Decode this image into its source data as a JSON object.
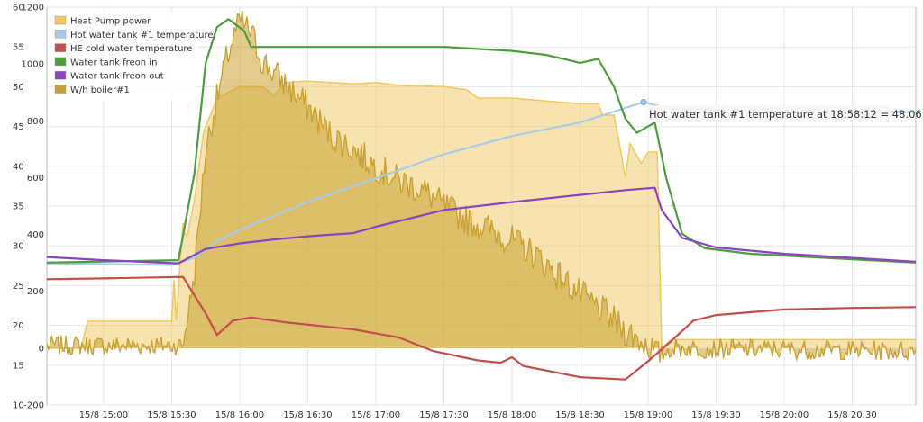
{
  "chart_data": {
    "type": "line",
    "title": "",
    "xlabel": "",
    "ylabel": "",
    "grid": true,
    "legend_position": "top-left",
    "x_axis": {
      "ticks": [
        "15/8 15:00",
        "15/8 15:30",
        "15/8 16:00",
        "15/8 16:30",
        "15/8 17:00",
        "15/8 17:30",
        "15/8 18:00",
        "15/8 18:30",
        "15/8 19:00",
        "15/8 19:30",
        "15/8 20:00",
        "15/8 20:30"
      ],
      "range": [
        "14:35",
        "20:58"
      ]
    },
    "y_axes": {
      "left": {
        "ticks": [
          "60",
          "55",
          "50",
          "45",
          "40",
          "35",
          "30",
          "25",
          "20",
          "15",
          "10"
        ],
        "ylim": [
          10,
          60
        ]
      },
      "right": {
        "ticks": [
          "1200",
          "1000",
          "800",
          "600",
          "400",
          "200",
          "0",
          "-200"
        ],
        "ylim": [
          -200,
          1200
        ]
      }
    },
    "series": [
      {
        "name": "Heat Pump power",
        "axis": "right",
        "style": "area",
        "color": "#f0c860",
        "points": [
          [
            "14:35",
            0
          ],
          [
            "14:50",
            0
          ],
          [
            "14:53",
            95
          ],
          [
            "15:30",
            95
          ],
          [
            "15:31",
            240
          ],
          [
            "15:32",
            100
          ],
          [
            "15:35",
            440
          ],
          [
            "15:36",
            400
          ],
          [
            "15:37",
            400
          ],
          [
            "15:40",
            520
          ],
          [
            "15:44",
            760
          ],
          [
            "15:50",
            880
          ],
          [
            "16:00",
            920
          ],
          [
            "16:10",
            920
          ],
          [
            "16:15",
            890
          ],
          [
            "16:20",
            935
          ],
          [
            "16:30",
            940
          ],
          [
            "16:50",
            930
          ],
          [
            "17:00",
            935
          ],
          [
            "17:10",
            925
          ],
          [
            "17:30",
            920
          ],
          [
            "17:40",
            910
          ],
          [
            "17:45",
            880
          ],
          [
            "18:00",
            880
          ],
          [
            "18:15",
            870
          ],
          [
            "18:30",
            860
          ],
          [
            "18:38",
            860
          ],
          [
            "18:40",
            820
          ],
          [
            "18:45",
            820
          ],
          [
            "18:48",
            690
          ],
          [
            "18:50",
            600
          ],
          [
            "18:52",
            720
          ],
          [
            "18:57",
            650
          ],
          [
            "19:00",
            690
          ],
          [
            "19:04",
            690
          ],
          [
            "19:06",
            0
          ],
          [
            "19:10",
            30
          ],
          [
            "19:30",
            30
          ],
          [
            "20:58",
            30
          ]
        ]
      },
      {
        "name": "Hot water tank #1 temperature",
        "axis": "left",
        "color": "#a8cce8",
        "points": [
          [
            "14:35",
            27.8
          ],
          [
            "15:30",
            27.6
          ],
          [
            "15:40",
            28.5
          ],
          [
            "15:50",
            30.6
          ],
          [
            "16:00",
            32.0
          ],
          [
            "16:30",
            35.5
          ],
          [
            "17:00",
            38.5
          ],
          [
            "17:30",
            41.5
          ],
          [
            "18:00",
            43.8
          ],
          [
            "18:30",
            45.5
          ],
          [
            "18:58",
            48.06
          ],
          [
            "19:10",
            47.2
          ],
          [
            "20:00",
            47.0
          ],
          [
            "20:58",
            46.8
          ]
        ]
      },
      {
        "name": "HE cold water temperature",
        "axis": "left",
        "color": "#c0504d",
        "points": [
          [
            "14:35",
            25.8
          ],
          [
            "15:00",
            25.9
          ],
          [
            "15:35",
            26.1
          ],
          [
            "15:45",
            21.5
          ],
          [
            "15:50",
            18.8
          ],
          [
            "15:57",
            20.6
          ],
          [
            "16:05",
            21.0
          ],
          [
            "16:20",
            20.4
          ],
          [
            "16:50",
            19.5
          ],
          [
            "17:10",
            18.5
          ],
          [
            "17:25",
            16.8
          ],
          [
            "17:45",
            15.6
          ],
          [
            "17:55",
            15.3
          ],
          [
            "18:00",
            16.0
          ],
          [
            "18:05",
            14.9
          ],
          [
            "18:30",
            13.5
          ],
          [
            "18:50",
            13.2
          ],
          [
            "19:00",
            15.5
          ],
          [
            "19:10",
            18.0
          ],
          [
            "19:20",
            20.6
          ],
          [
            "19:30",
            21.3
          ],
          [
            "20:00",
            22.0
          ],
          [
            "20:30",
            22.2
          ],
          [
            "20:58",
            22.3
          ]
        ]
      },
      {
        "name": "Water tank freon in",
        "axis": "left",
        "color": "#4c9e3c",
        "points": [
          [
            "14:35",
            27.9
          ],
          [
            "15:33",
            28.2
          ],
          [
            "15:40",
            39.0
          ],
          [
            "15:45",
            53.0
          ],
          [
            "15:50",
            57.5
          ],
          [
            "15:55",
            58.5
          ],
          [
            "16:02",
            57.0
          ],
          [
            "16:05",
            55.0
          ],
          [
            "16:20",
            55.0
          ],
          [
            "17:00",
            55.0
          ],
          [
            "17:30",
            55.0
          ],
          [
            "18:00",
            54.5
          ],
          [
            "18:15",
            54.0
          ],
          [
            "18:30",
            53.0
          ],
          [
            "18:38",
            53.5
          ],
          [
            "18:45",
            50.0
          ],
          [
            "18:50",
            46.0
          ],
          [
            "18:55",
            44.2
          ],
          [
            "19:03",
            45.5
          ],
          [
            "19:08",
            38.5
          ],
          [
            "19:15",
            31.5
          ],
          [
            "19:25",
            29.7
          ],
          [
            "19:45",
            29.0
          ],
          [
            "20:30",
            28.3
          ],
          [
            "20:58",
            27.9
          ]
        ]
      },
      {
        "name": "Water tank freon out",
        "axis": "left",
        "color": "#8a44c2",
        "points": [
          [
            "14:35",
            28.6
          ],
          [
            "15:00",
            28.2
          ],
          [
            "15:33",
            27.8
          ],
          [
            "15:45",
            29.6
          ],
          [
            "16:00",
            30.3
          ],
          [
            "16:15",
            30.8
          ],
          [
            "16:30",
            31.2
          ],
          [
            "16:50",
            31.6
          ],
          [
            "17:00",
            32.4
          ],
          [
            "17:30",
            34.5
          ],
          [
            "18:00",
            35.5
          ],
          [
            "18:30",
            36.4
          ],
          [
            "18:50",
            37.0
          ],
          [
            "19:03",
            37.3
          ],
          [
            "19:06",
            34.5
          ],
          [
            "19:15",
            31.0
          ],
          [
            "19:30",
            29.8
          ],
          [
            "20:00",
            29.0
          ],
          [
            "20:58",
            28.0
          ]
        ]
      },
      {
        "name": "W/h boiler#1",
        "axis": "right",
        "style": "area",
        "noisy": true,
        "color": "#c8a030",
        "points": [
          [
            "14:35",
            10
          ],
          [
            "15:35",
            10
          ],
          [
            "15:40",
            260
          ],
          [
            "15:45",
            700
          ],
          [
            "15:50",
            880
          ],
          [
            "15:55",
            1040
          ],
          [
            "16:00",
            1150
          ],
          [
            "16:05",
            1110
          ],
          [
            "16:10",
            1010
          ],
          [
            "16:20",
            930
          ],
          [
            "16:30",
            850
          ],
          [
            "16:40",
            750
          ],
          [
            "16:50",
            700
          ],
          [
            "17:00",
            640
          ],
          [
            "17:10",
            590
          ],
          [
            "17:20",
            560
          ],
          [
            "17:30",
            500
          ],
          [
            "17:40",
            450
          ],
          [
            "17:50",
            420
          ],
          [
            "18:00",
            380
          ],
          [
            "18:10",
            330
          ],
          [
            "18:20",
            260
          ],
          [
            "18:30",
            190
          ],
          [
            "18:40",
            130
          ],
          [
            "18:50",
            60
          ],
          [
            "19:00",
            10
          ],
          [
            "19:05",
            -30
          ],
          [
            "19:10",
            0
          ],
          [
            "20:58",
            -10
          ]
        ]
      }
    ],
    "tooltip": {
      "text": "Hot water tank #1 temperature at 18:58:12 = 48.06",
      "series": "Hot water tank #1 temperature",
      "x": "18:58",
      "y": 48.06
    }
  }
}
